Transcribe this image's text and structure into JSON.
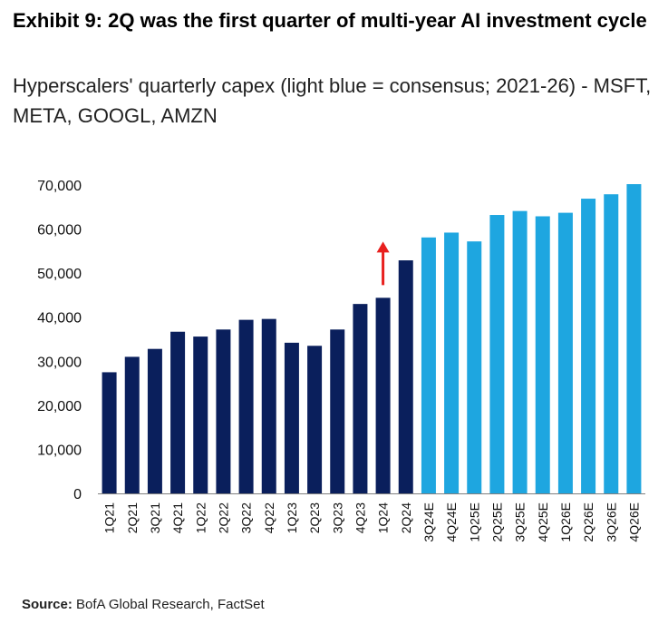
{
  "header": {
    "title": "Exhibit 9: 2Q was the first quarter of multi-year AI investment cycle",
    "subtitle": "Hyperscalers' quarterly capex (light blue = consensus; 2021-26) - MSFT, META, GOOGL, AMZN"
  },
  "footer": {
    "source_label": "Source:",
    "source_text": " BofA Global Research, FactSet"
  },
  "colors": {
    "actual": "#0a1f5c",
    "consensus": "#1ea6e0",
    "arrow": "#e8201e"
  },
  "chart_data": {
    "type": "bar",
    "title": "",
    "xlabel": "",
    "ylabel": "",
    "ylim": [
      0,
      70000
    ],
    "yticks": [
      0,
      10000,
      20000,
      30000,
      40000,
      50000,
      60000,
      70000
    ],
    "grid": false,
    "annotations": [
      {
        "type": "arrow-up",
        "near": "1Q24",
        "color": "#e8201e"
      }
    ],
    "categories": [
      "1Q21",
      "2Q21",
      "3Q21",
      "4Q21",
      "1Q22",
      "2Q22",
      "3Q22",
      "4Q22",
      "1Q23",
      "2Q23",
      "3Q23",
      "4Q23",
      "1Q24",
      "2Q24",
      "3Q24E",
      "4Q24E",
      "1Q25E",
      "2Q25E",
      "3Q25E",
      "4Q25E",
      "1Q26E",
      "2Q26E",
      "3Q26E",
      "4Q26E"
    ],
    "values": [
      27500,
      31000,
      32800,
      36700,
      35600,
      37200,
      39400,
      39600,
      34200,
      33500,
      37200,
      43000,
      44400,
      52900,
      58100,
      59200,
      57200,
      63200,
      64100,
      62900,
      63700,
      66900,
      67900,
      70200
    ],
    "kind": [
      "actual",
      "actual",
      "actual",
      "actual",
      "actual",
      "actual",
      "actual",
      "actual",
      "actual",
      "actual",
      "actual",
      "actual",
      "actual",
      "actual",
      "consensus",
      "consensus",
      "consensus",
      "consensus",
      "consensus",
      "consensus",
      "consensus",
      "consensus",
      "consensus",
      "consensus"
    ]
  }
}
